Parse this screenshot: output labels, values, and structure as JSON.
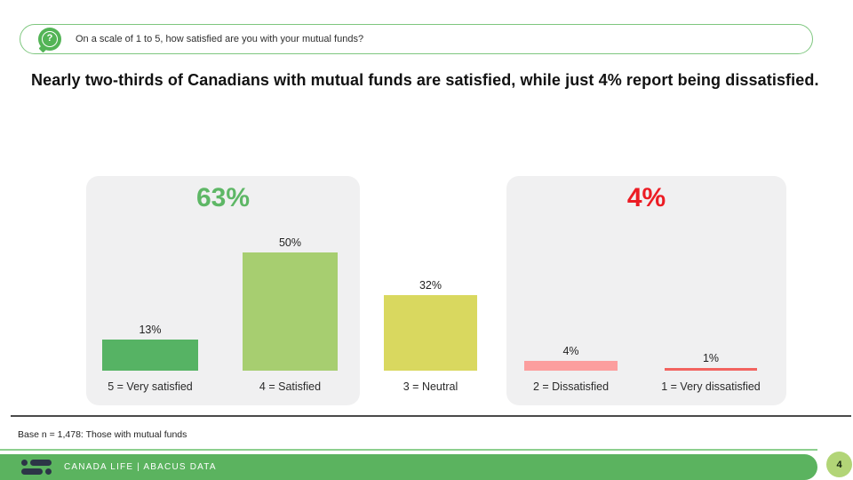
{
  "question_banner": {
    "icon": "question-bubble-icon",
    "text": "On a scale of 1 to 5, how satisfied are you with your mutual funds?"
  },
  "headline": "Nearly two-thirds of Canadians with mutual funds are satisfied, while just 4% report being dissatisfied.",
  "chart_data": {
    "type": "bar",
    "title": "",
    "xlabel": "",
    "ylabel": "",
    "categories": [
      "5 = Very satisfied",
      "4 = Satisfied",
      "3 = Neutral",
      "2 = Dissatisfied",
      "1 = Very dissatisfied"
    ],
    "values": [
      13,
      50,
      32,
      4,
      1
    ],
    "value_labels": [
      "13%",
      "50%",
      "32%",
      "4%",
      "1%"
    ],
    "bar_colors": [
      "#56b364",
      "#a7ce70",
      "#d9d85f",
      "#fc9e9e",
      "#f2635f"
    ],
    "ylim": [
      0,
      55
    ],
    "grid": false,
    "legend": false,
    "summary_groups": [
      {
        "label": "63%",
        "color": "#5eb766",
        "span": [
          0,
          1
        ]
      },
      {
        "label": "4%",
        "color": "#ec1c24",
        "span": [
          3,
          4
        ]
      }
    ]
  },
  "base_note": "Base n = 1,478: Those with mutual funds",
  "footer": {
    "brand_text": "CANADA LIFE  |  ABACUS DATA",
    "page_number": "4"
  },
  "colors": {
    "brand_green": "#5bb35f",
    "accent_red": "#ec1c24",
    "panel_gray": "#f0f0f1",
    "pill_border_green": "#7ec77f",
    "page_circle_green": "#b2d577"
  }
}
